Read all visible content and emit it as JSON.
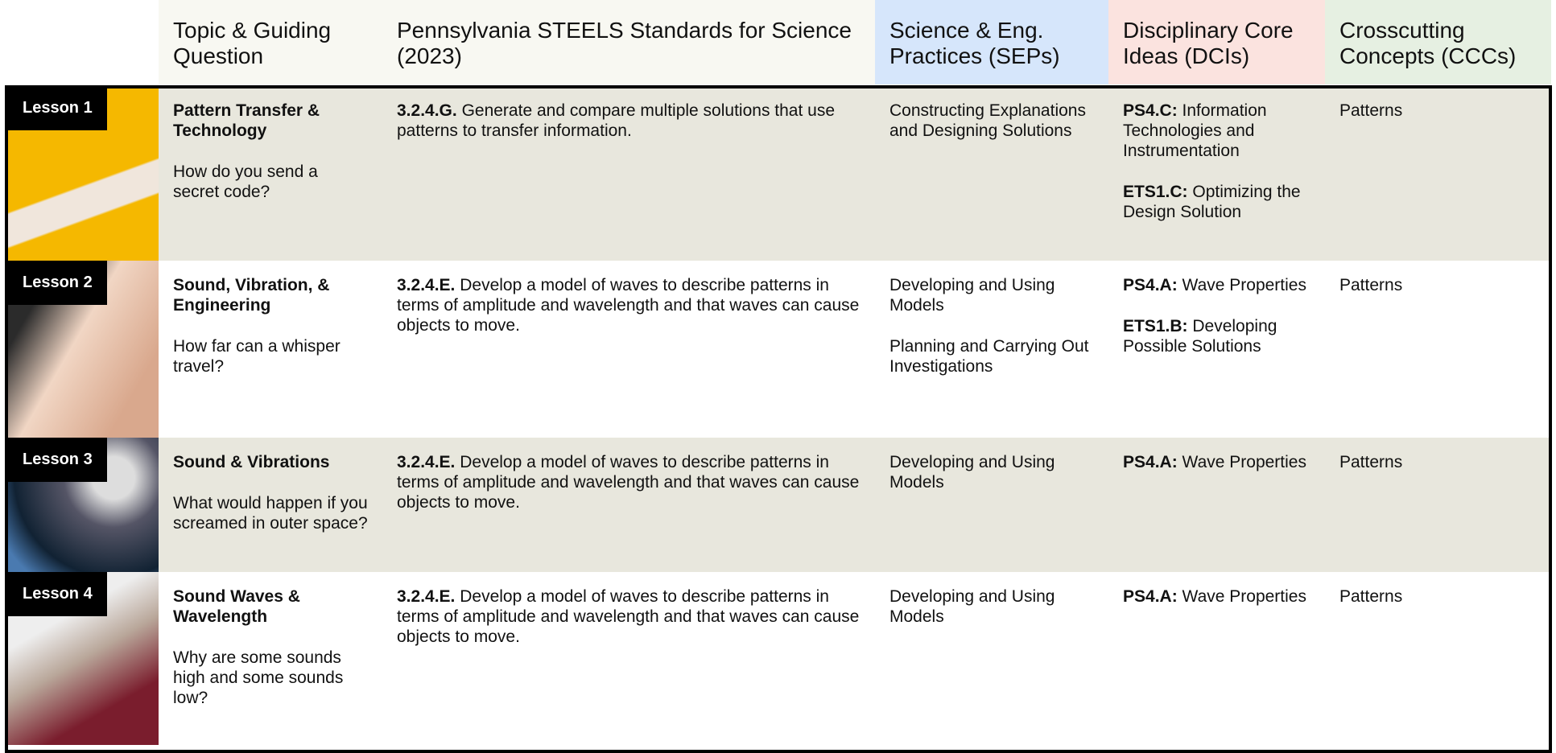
{
  "header": {
    "columns": [
      "Topic & Guiding Question",
      "Pennsylvania STEELS Standards for Science (2023)",
      "Science & Eng. Practices (SEPs)",
      "Disciplinary Core Ideas (DCIs)",
      "Crosscutting Concepts (CCCs)"
    ]
  },
  "rows": [
    {
      "lesson": "Lesson 1",
      "topic": "Pattern Transfer & Technology",
      "question": "How do you send a secret code?",
      "standard": {
        "code": "3.2.4.G.",
        "text": "Generate and compare multiple solutions that use patterns to transfer information."
      },
      "seps": [
        "Constructing Explanations and Designing Solutions"
      ],
      "dcis": [
        {
          "code": "PS4.C:",
          "text": "Information Technologies and Instrumentation"
        },
        {
          "code": "ETS1.C:",
          "text": "Optimizing the Design Solution"
        }
      ],
      "ccc": "Patterns"
    },
    {
      "lesson": "Lesson 2",
      "topic": "Sound, Vibration, & Engineering",
      "question": "How far can a whisper travel?",
      "standard": {
        "code": "3.2.4.E.",
        "text": "Develop a model of waves to describe patterns in terms of amplitude and wavelength and that waves can cause objects to move."
      },
      "seps": [
        "Developing and Using Models",
        "Planning and Carrying Out Investigations"
      ],
      "dcis": [
        {
          "code": "PS4.A:",
          "text": "Wave Properties"
        },
        {
          "code": "ETS1.B:",
          "text": "Developing Possible Solutions"
        }
      ],
      "ccc": "Patterns"
    },
    {
      "lesson": "Lesson 3",
      "topic": "Sound & Vibrations",
      "question": "What would happen if you screamed in outer space?",
      "standard": {
        "code": "3.2.4.E.",
        "text": "Develop a model of waves to describe patterns in terms of amplitude and wavelength and that waves can cause objects to move."
      },
      "seps": [
        "Developing and Using Models"
      ],
      "dcis": [
        {
          "code": "PS4.A:",
          "text": "Wave Properties"
        }
      ],
      "ccc": "Patterns"
    },
    {
      "lesson": "Lesson 4",
      "topic": "Sound Waves & Wavelength",
      "question": "Why are some sounds high and some sounds low?",
      "standard": {
        "code": "3.2.4.E.",
        "text": "Develop a model of waves to describe patterns in terms of amplitude and wavelength and that waves can cause objects to move."
      },
      "seps": [
        "Developing and Using Models"
      ],
      "dcis": [
        {
          "code": "PS4.A:",
          "text": "Wave Properties"
        }
      ],
      "ccc": "Patterns"
    }
  ]
}
